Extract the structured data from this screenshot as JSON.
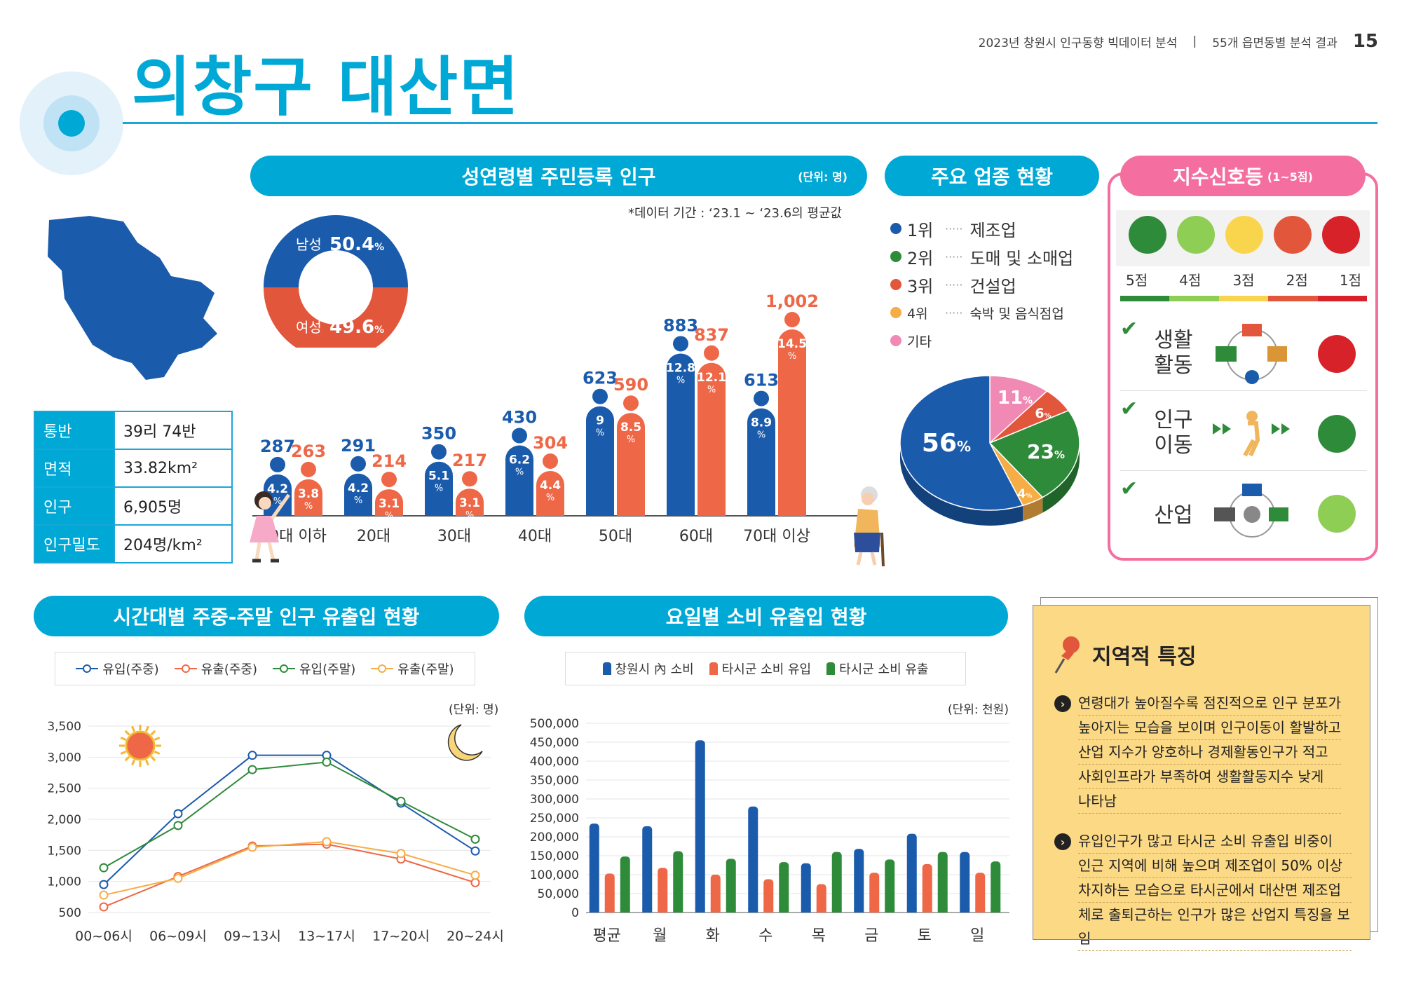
{
  "header": {
    "title": "의창구 대산면",
    "report": "2023년 창원시 인구동향 빅데이터 분석",
    "section": "55개 읍면동별 분석 결과",
    "page": "15"
  },
  "colors": {
    "accent": "#00a8d6",
    "male": "#1b5bac",
    "female": "#ee6747",
    "pink_pill": "#f46fa0",
    "note": "#fbd985"
  },
  "info": {
    "rows": [
      {
        "key": "통반",
        "value": "39리 74반"
      },
      {
        "key": "면적",
        "value": "33.82km²"
      },
      {
        "key": "인구",
        "value": "6,905명"
      },
      {
        "key": "인구밀도",
        "value": "204명/km²"
      }
    ]
  },
  "pop": {
    "title": "성연령별 주민등록 인구",
    "unit": "(단위: 명)",
    "period": "*데이터 기간 : ‘23.1 ~ ‘23.6의 평균값",
    "male_label": "남성",
    "male_pct": "50.4",
    "female_label": "여성",
    "female_pct": "49.6",
    "pct_sign": "%"
  },
  "industry": {
    "title": "주요 업종 현황",
    "ranks": [
      {
        "rank": "1위",
        "name": "제조업",
        "color": "#1b5bac"
      },
      {
        "rank": "2위",
        "name": "도매 및 소매업",
        "color": "#2e8b3a"
      },
      {
        "rank": "3위",
        "name": "건설업",
        "color": "#e2563c"
      },
      {
        "rank": "4위",
        "name": "숙박 및 음식점업",
        "color": "#f6ad45"
      },
      {
        "rank": "기타",
        "name": "",
        "color": "#f08ab4"
      }
    ],
    "dots": "·····"
  },
  "signal": {
    "title": "지수신호등",
    "range": "(1~5점)",
    "scores": [
      "5점",
      "4점",
      "3점",
      "2점",
      "1점"
    ],
    "rows": [
      {
        "label": "생활\n활동",
        "l1": "생활",
        "l2": "활동",
        "score": 1
      },
      {
        "label": "인구\n이동",
        "l1": "인구",
        "l2": "이동",
        "score": 5
      },
      {
        "label": "산업",
        "l1": "산업",
        "l2": "",
        "score": 4
      }
    ]
  },
  "flow": {
    "title": "시간대별 주중-주말 인구 유출입 현황",
    "unit": "(단위: 명)",
    "legend": [
      "유입(주중)",
      "유출(주중)",
      "유입(주말)",
      "유출(주말)"
    ]
  },
  "spend": {
    "title": "요일별 소비 유출입 현황",
    "unit": "(단위: 천원)",
    "legend": [
      "창원시 內 소비",
      "타시군 소비 유입",
      "타시군 소비 유출"
    ]
  },
  "features": {
    "title": "지역적 특징",
    "bullets": [
      [
        "연령대가 높아질수록 점진적으로 인구 분포가",
        "높아지는 모습을 보이며 인구이동이 활발하고",
        "산업 지수가 양호하나 경제활동인구가 적고",
        "사회인프라가 부족하여 생활활동지수 낮게",
        "나타남"
      ],
      [
        "유입인구가 많고 타시군 소비 유출입 비중이",
        "인근 지역에 비해 높으며 제조업이 50% 이상",
        "차지하는 모습으로 타시군에서 대산면 제조업",
        "체로 출퇴근하는 인구가 많은 산업지 특징을 보임"
      ]
    ]
  },
  "chart_data": [
    {
      "type": "bar",
      "title": "성연령별 주민등록 인구",
      "categories": [
        "10대 이하",
        "20대",
        "30대",
        "40대",
        "50대",
        "60대",
        "70대 이상"
      ],
      "series": [
        {
          "name": "남성",
          "values": [
            287,
            291,
            350,
            430,
            623,
            883,
            613
          ],
          "pct": [
            "4.2",
            "4.2",
            "5.1",
            "6.2",
            "9",
            "12.8",
            "8.9"
          ],
          "color": "#1b5bac"
        },
        {
          "name": "여성",
          "values": [
            263,
            214,
            217,
            304,
            590,
            837,
            1002
          ],
          "pct": [
            "3.8",
            "3.1",
            "3.1",
            "4.4",
            "8.5",
            "12.1",
            "14.5"
          ],
          "color": "#ee6747"
        }
      ],
      "value_labels": [
        "287",
        "291",
        "350",
        "430",
        "623",
        "883",
        "613",
        "263",
        "214",
        "217",
        "304",
        "590",
        "837",
        "1,002"
      ]
    },
    {
      "type": "pie",
      "title": "주요 업종 현황",
      "slices": [
        {
          "label": "1위",
          "value": 56,
          "color": "#1b5bac"
        },
        {
          "label": "2위",
          "value": 23,
          "color": "#2e8b3a"
        },
        {
          "label": "3위",
          "value": 6,
          "color": "#e2563c"
        },
        {
          "label": "4위",
          "value": 4,
          "color": "#f6ad45"
        },
        {
          "label": "기타",
          "value": 11,
          "color": "#f08ab4"
        }
      ]
    },
    {
      "type": "line",
      "title": "시간대별 주중-주말 인구 유출입 현황",
      "x": [
        "00~06시",
        "06~09시",
        "09~13시",
        "13~17시",
        "17~20시",
        "20~24시"
      ],
      "ylim": [
        500,
        3500
      ],
      "yticks": [
        "500",
        "1,000",
        "1,500",
        "2,000",
        "2,500",
        "3,000",
        "3,500"
      ],
      "series": [
        {
          "name": "유입(주중)",
          "values": [
            950,
            2090,
            3030,
            3030,
            2260,
            1490
          ],
          "color": "#1b5bac"
        },
        {
          "name": "유출(주중)",
          "values": [
            590,
            1080,
            1570,
            1600,
            1360,
            980
          ],
          "color": "#ee6747"
        },
        {
          "name": "유입(주말)",
          "values": [
            1220,
            1900,
            2800,
            2920,
            2290,
            1680
          ],
          "color": "#2e8b3a"
        },
        {
          "name": "유출(주말)",
          "values": [
            780,
            1050,
            1550,
            1640,
            1450,
            1100
          ],
          "color": "#f6ad45"
        }
      ]
    },
    {
      "type": "bar",
      "title": "요일별 소비 유출입 현황",
      "categories": [
        "평균",
        "월",
        "화",
        "수",
        "목",
        "금",
        "토",
        "일"
      ],
      "ylim": [
        0,
        500000
      ],
      "yticks": [
        "0",
        "50,000",
        "100,000",
        "150,000",
        "200,000",
        "250,000",
        "300,000",
        "350,000",
        "400,000",
        "450,000",
        "500,000"
      ],
      "series": [
        {
          "name": "창원시 內 소비",
          "values": [
            235000,
            228000,
            455000,
            280000,
            130000,
            168000,
            208000,
            160000
          ],
          "color": "#1b5bac"
        },
        {
          "name": "타시군 소비 유입",
          "values": [
            103000,
            118000,
            100000,
            88000,
            75000,
            105000,
            128000,
            105000
          ],
          "color": "#ee6747"
        },
        {
          "name": "타시군 소비 유출",
          "values": [
            148000,
            162000,
            142000,
            133000,
            160000,
            140000,
            160000,
            135000
          ],
          "color": "#2e8b3a"
        }
      ]
    }
  ]
}
